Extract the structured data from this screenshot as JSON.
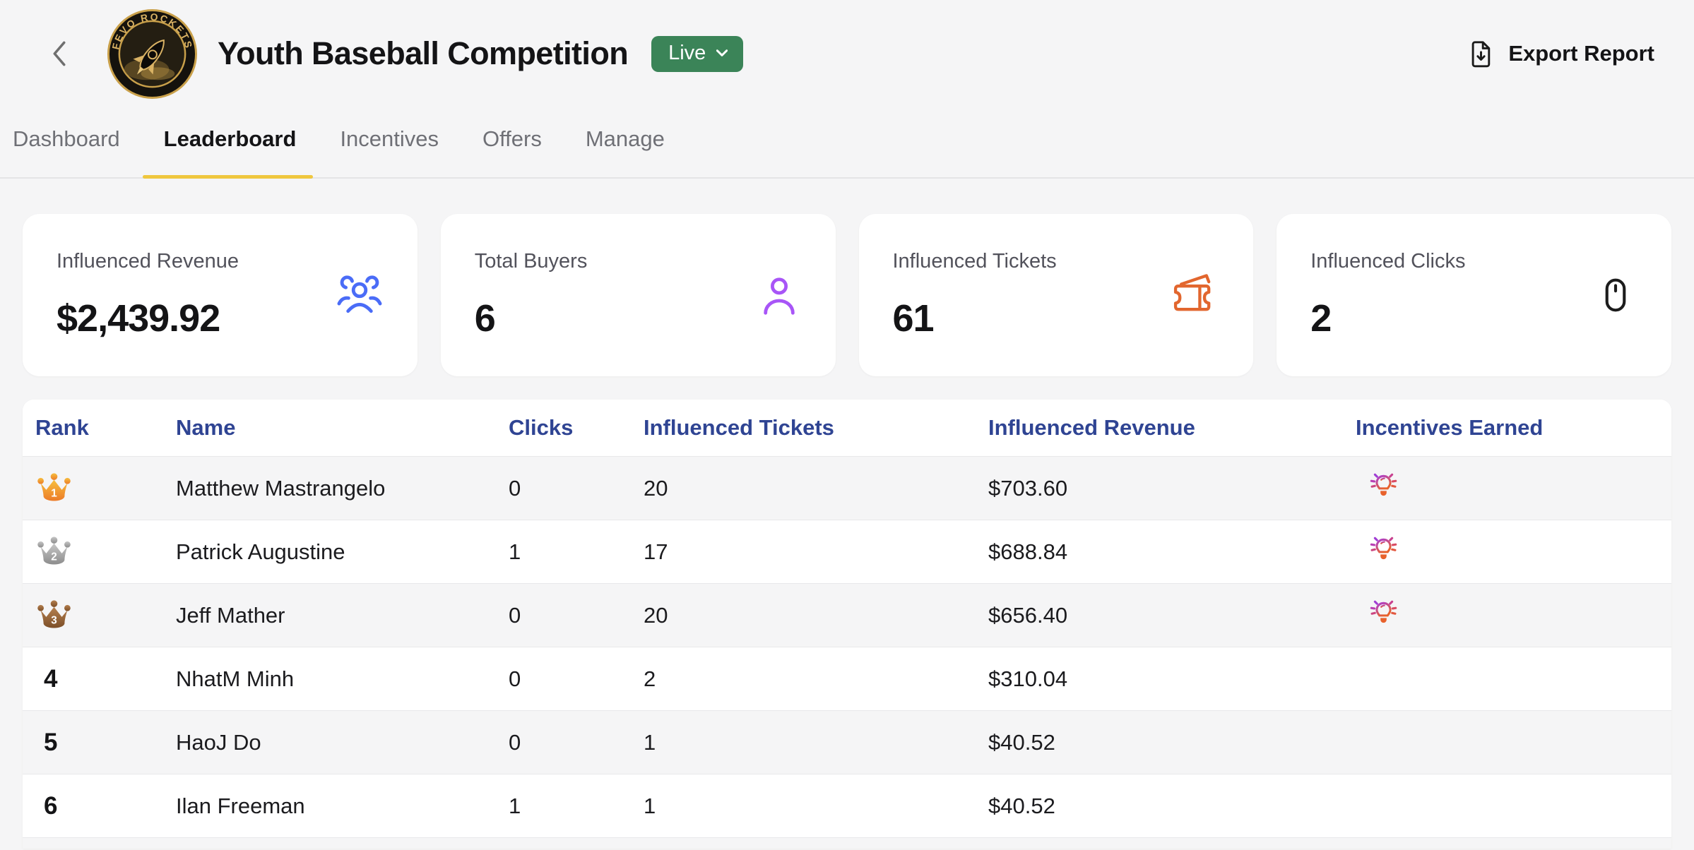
{
  "header": {
    "logo_text": "FEVO ROCKETS",
    "title": "Youth Baseball Competition",
    "status_badge": "Live",
    "export_label": "Export Report"
  },
  "tabs": [
    {
      "label": "Dashboard",
      "active": false
    },
    {
      "label": "Leaderboard",
      "active": true
    },
    {
      "label": "Incentives",
      "active": false
    },
    {
      "label": "Offers",
      "active": false
    },
    {
      "label": "Manage",
      "active": false
    }
  ],
  "stats": [
    {
      "label": "Influenced Revenue",
      "value": "$2,439.92",
      "icon": "users-group-icon",
      "icon_color": "#4a6cf7"
    },
    {
      "label": "Total Buyers",
      "value": "6",
      "icon": "person-icon",
      "icon_color": "#a855f7"
    },
    {
      "label": "Influenced Tickets",
      "value": "61",
      "icon": "ticket-icon",
      "icon_color": "#e2662e"
    },
    {
      "label": "Influenced Clicks",
      "value": "2",
      "icon": "mouse-icon",
      "icon_color": "#1c1c1c"
    }
  ],
  "table": {
    "columns": [
      "Rank",
      "Name",
      "Clicks",
      "Influenced Tickets",
      "Influenced Revenue",
      "Incentives Earned"
    ],
    "rows": [
      {
        "rank": "1",
        "rank_style": "gold-crown",
        "name": "Matthew Mastrangelo",
        "clicks": "0",
        "tickets": "20",
        "revenue": "$703.60",
        "incentive": true
      },
      {
        "rank": "2",
        "rank_style": "silver-crown",
        "name": "Patrick Augustine",
        "clicks": "1",
        "tickets": "17",
        "revenue": "$688.84",
        "incentive": true
      },
      {
        "rank": "3",
        "rank_style": "bronze-crown",
        "name": "Jeff Mather",
        "clicks": "0",
        "tickets": "20",
        "revenue": "$656.40",
        "incentive": true
      },
      {
        "rank": "4",
        "rank_style": "plain",
        "name": "NhatM Minh",
        "clicks": "0",
        "tickets": "2",
        "revenue": "$310.04",
        "incentive": false
      },
      {
        "rank": "5",
        "rank_style": "plain",
        "name": "HaoJ Do",
        "clicks": "0",
        "tickets": "1",
        "revenue": "$40.52",
        "incentive": false
      },
      {
        "rank": "6",
        "rank_style": "plain",
        "name": "Ilan Freeman",
        "clicks": "1",
        "tickets": "1",
        "revenue": "$40.52",
        "incentive": false
      }
    ]
  },
  "colors": {
    "page_background": "#f5f5f6",
    "live_badge_green": "#3b8458",
    "tab_underline_yellow": "#efc73e",
    "table_header_navy": "#2f4493",
    "crown_gold": [
      "#f7bf3e",
      "#ec7b28"
    ],
    "crown_silver": [
      "#c6c6c6",
      "#8d8d8d"
    ],
    "crown_bronze": [
      "#b5804f",
      "#7d4f28"
    ],
    "bulb_gradient": [
      "#a93cd6",
      "#e8622c"
    ]
  }
}
